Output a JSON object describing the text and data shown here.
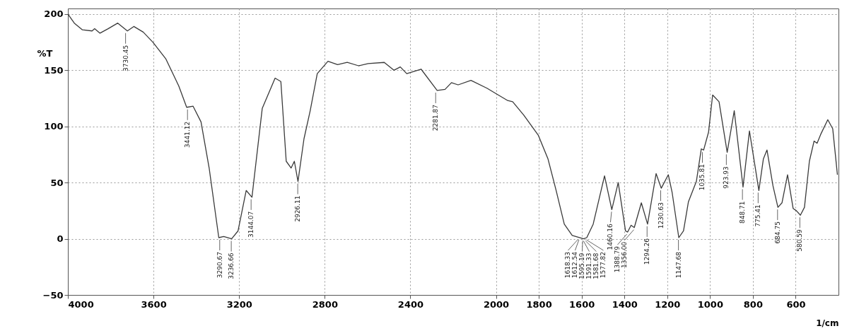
{
  "chart_data": {
    "type": "line",
    "ylabel": "%T",
    "xlabel": "1/cm",
    "xlim": [
      4000,
      400
    ],
    "xticks": [
      4000,
      3600,
      3200,
      2800,
      2400,
      2000,
      1800,
      1600,
      1400,
      1200,
      1000,
      800,
      600
    ],
    "ylim": [
      -50,
      205
    ],
    "yticks": [
      -50,
      0,
      50,
      100,
      150,
      200
    ],
    "grid": true,
    "marker": "none",
    "line_style": "solid",
    "series": [
      {
        "color": "#3a3a3a",
        "x": [
          4000,
          3970,
          3932,
          3887,
          3875,
          3850,
          3812,
          3767,
          3722,
          3692,
          3648,
          3603,
          3542,
          3482,
          3445,
          3415,
          3378,
          3340,
          3295,
          3272,
          3235,
          3205,
          3167,
          3140,
          3092,
          3032,
          3005,
          2980,
          2957,
          2942,
          2925,
          2897,
          2868,
          2835,
          2785,
          2740,
          2695,
          2642,
          2597,
          2522,
          2477,
          2447,
          2417,
          2350,
          2275,
          2238,
          2208,
          2177,
          2117,
          2042,
          1998,
          1945,
          1922,
          1870,
          1802,
          1757,
          1719,
          1681,
          1644,
          1591,
          1576,
          1546,
          1493,
          1459,
          1429,
          1395,
          1385,
          1369,
          1354,
          1321,
          1292,
          1252,
          1228,
          1195,
          1177,
          1146,
          1124,
          1101,
          1064,
          1041,
          1030,
          1007,
          988,
          958,
          920,
          887,
          846,
          816,
          772,
          751,
          734,
          706,
          683,
          664,
          638,
          612,
          597,
          578,
          559,
          536,
          514,
          500,
          483,
          450,
          427,
          405
        ],
        "values": [
          200,
          192,
          186,
          185,
          187,
          183,
          187,
          192,
          185,
          189,
          184,
          175,
          160,
          136,
          117,
          118,
          104,
          63,
          1,
          2,
          0,
          7,
          43,
          37,
          116,
          143,
          140,
          69,
          63,
          69,
          51,
          89,
          114,
          147,
          158,
          155,
          157,
          154,
          156,
          157,
          150,
          153,
          147,
          151,
          132,
          133,
          139,
          137,
          141,
          134,
          129,
          123,
          122,
          110,
          92,
          71,
          43,
          13,
          3,
          0,
          1,
          13,
          56,
          26,
          50,
          7,
          6,
          12,
          10,
          32,
          13,
          58,
          45,
          57,
          41,
          1,
          7,
          33,
          51,
          80,
          79,
          95,
          128,
          122,
          77,
          114,
          46,
          96,
          43,
          71,
          79,
          47,
          28,
          32,
          57,
          27,
          25,
          21,
          28,
          69,
          87,
          85,
          93,
          106,
          98,
          57
        ]
      }
    ],
    "annotations": [
      {
        "text": "3730.45",
        "x": 3730.45,
        "y": 185
      },
      {
        "text": "3441.12",
        "x": 3441.12,
        "y": 117
      },
      {
        "text": "3290.67",
        "x": 3290.67,
        "y": 1
      },
      {
        "text": "3236.66",
        "x": 3236.66,
        "y": 0
      },
      {
        "text": "3144.07",
        "x": 3144.07,
        "y": 37
      },
      {
        "text": "2926.11",
        "x": 2926.11,
        "y": 51
      },
      {
        "text": "2281.87",
        "x": 2281.87,
        "y": 132
      },
      {
        "text": "1618.33",
        "x": 1618.33,
        "y": 1
      },
      {
        "text": "1612.54",
        "x": 1612.54,
        "y": 1
      },
      {
        "text": "1595.19",
        "x": 1595.19,
        "y": 0
      },
      {
        "text": "1591.33",
        "x": 1591.33,
        "y": 0
      },
      {
        "text": "1581.68",
        "x": 1581.68,
        "y": 0
      },
      {
        "text": "1577.82",
        "x": 1577.82,
        "y": 1
      },
      {
        "text": "1460.16",
        "x": 1460.16,
        "y": 26
      },
      {
        "text": "1388.79",
        "x": 1388.79,
        "y": 6
      },
      {
        "text": "1356.00",
        "x": 1356.0,
        "y": 10
      },
      {
        "text": "1294.26",
        "x": 1294.26,
        "y": 13
      },
      {
        "text": "1230.63",
        "x": 1230.63,
        "y": 45
      },
      {
        "text": "1147.68",
        "x": 1147.68,
        "y": 1
      },
      {
        "text": "1035.81",
        "x": 1035.81,
        "y": 79
      },
      {
        "text": "923.93",
        "x": 923.93,
        "y": 77
      },
      {
        "text": "848.71",
        "x": 848.71,
        "y": 46
      },
      {
        "text": "775.41",
        "x": 775.41,
        "y": 43
      },
      {
        "text": "684.75",
        "x": 684.75,
        "y": 28
      },
      {
        "text": "580.59",
        "x": 580.59,
        "y": 21
      }
    ]
  }
}
